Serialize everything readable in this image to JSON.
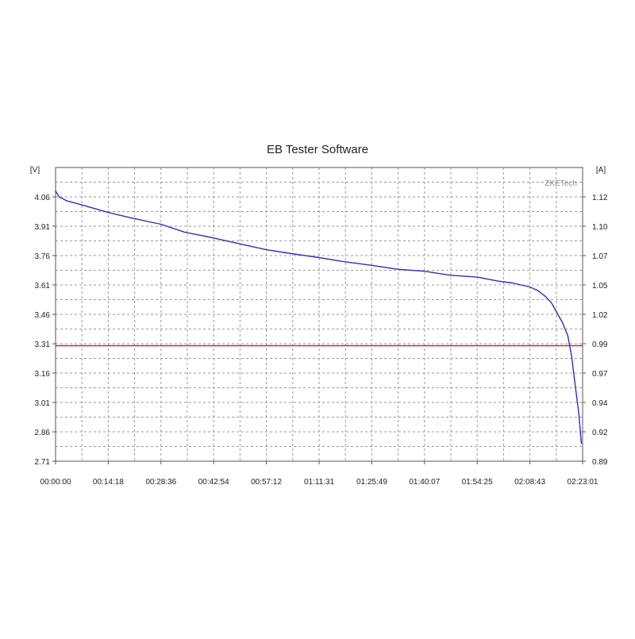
{
  "chart_data": {
    "type": "line",
    "title": "EB Tester Software",
    "watermark": "ZKETech",
    "y_left_unit": "[V]",
    "y_right_unit": "[A]",
    "x_ticks": [
      "00:00:00",
      "00:14:18",
      "00:28:36",
      "00:42:54",
      "00:57:12",
      "01:11:31",
      "01:25:49",
      "01:40:07",
      "01:54:25",
      "02:08:43",
      "02:23:01"
    ],
    "y_left_ticks": [
      "2.71",
      "2.86",
      "3.01",
      "3.16",
      "3.31",
      "3.46",
      "3.61",
      "3.76",
      "3.91",
      "4.06"
    ],
    "y_right_ticks": [
      "0.89",
      "0.92",
      "0.94",
      "0.97",
      "0.99",
      "1.02",
      "1.05",
      "1.07",
      "1.10",
      "1.12"
    ],
    "y_left_range": [
      2.71,
      4.21
    ],
    "y_right_range": [
      0.89,
      1.145
    ],
    "x_range_seconds": [
      0,
      8581
    ],
    "grid": true,
    "series": [
      {
        "color": "#2e2ec0",
        "axis": "left",
        "x": [
          "00:00:00",
          "00:01:00",
          "00:03:00",
          "00:07:00",
          "00:14:18",
          "00:21:00",
          "00:28:36",
          "00:35:00",
          "00:42:54",
          "00:50:00",
          "00:57:12",
          "01:04:00",
          "01:11:31",
          "01:18:00",
          "01:25:49",
          "01:33:00",
          "01:40:07",
          "01:47:00",
          "01:54:25",
          "02:00:00",
          "02:04:00",
          "02:08:43",
          "02:11:00",
          "02:13:00",
          "02:14:30",
          "02:16:00",
          "02:17:30",
          "02:19:00",
          "02:20:00",
          "02:21:00",
          "02:22:00",
          "02:22:40"
        ],
        "y": [
          4.09,
          4.06,
          4.04,
          4.02,
          3.98,
          3.95,
          3.92,
          3.88,
          3.85,
          3.82,
          3.79,
          3.77,
          3.75,
          3.73,
          3.71,
          3.69,
          3.68,
          3.66,
          3.65,
          3.63,
          3.62,
          3.6,
          3.58,
          3.55,
          3.52,
          3.47,
          3.42,
          3.35,
          3.25,
          3.1,
          2.95,
          2.8
        ]
      },
      {
        "color": "#c03030",
        "axis": "left",
        "x": [
          "00:00:00",
          "02:23:01"
        ],
        "y": [
          3.3,
          3.3
        ]
      }
    ]
  }
}
